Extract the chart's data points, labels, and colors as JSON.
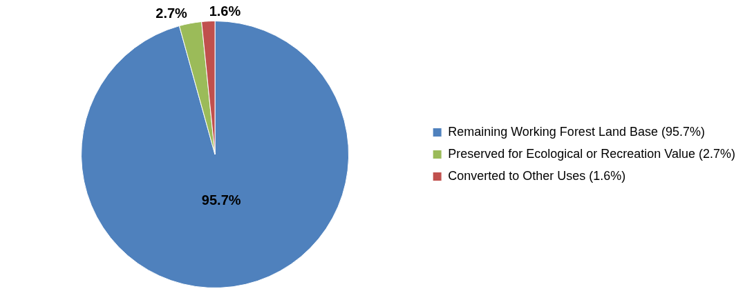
{
  "chart_data": {
    "type": "pie",
    "categories": [
      "Remaining Working Forest Land Base (95.7%)",
      "Preserved for Ecological or Recreation Value (2.7%)",
      "Converted to Other Uses (1.6%)"
    ],
    "values": [
      95.7,
      2.7,
      1.6
    ],
    "colors": [
      "#4f81bd",
      "#9bbb59",
      "#c0504d"
    ],
    "value_labels": [
      "95.7%",
      "2.7%",
      "1.6%"
    ],
    "legend": "right"
  }
}
